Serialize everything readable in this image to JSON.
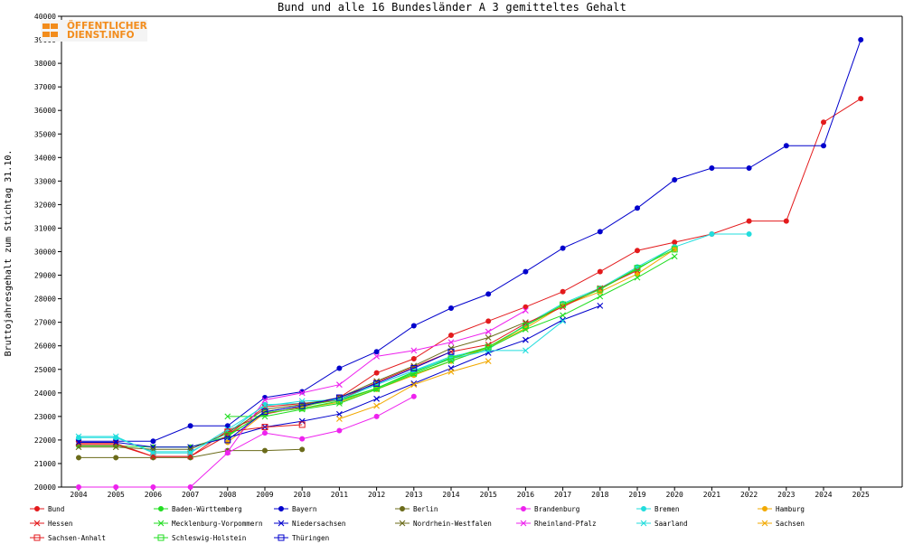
{
  "chart_data": {
    "type": "line",
    "title": "Bund und alle 16 Bundesländer A 3 gemitteltes Gehalt",
    "xlabel": "",
    "ylabel": "Bruttojahresgehalt zum Stichtag 31.10.",
    "ylim": [
      20000,
      40000
    ],
    "yticks": [
      20000,
      21000,
      22000,
      23000,
      24000,
      25000,
      26000,
      27000,
      28000,
      29000,
      30000,
      31000,
      32000,
      33000,
      34000,
      35000,
      36000,
      37000,
      38000,
      39000,
      40000
    ],
    "x": [
      "2004",
      "2005",
      "2006",
      "2007",
      "2008",
      "2009",
      "2010",
      "2011",
      "2012",
      "2013",
      "2014",
      "2015",
      "2016",
      "2017",
      "2018",
      "2019",
      "2020",
      "2021",
      "2022",
      "2023",
      "2024",
      "2025"
    ],
    "grid": false,
    "legend_position": "bottom",
    "series": [
      {
        "name": "Bund",
        "color": "#e31a1c",
        "marker": "dot",
        "values": [
          21800,
          21800,
          21300,
          21300,
          22400,
          23100,
          23400,
          23800,
          24850,
          25450,
          26450,
          27050,
          27650,
          28300,
          29150,
          30050,
          30400,
          30750,
          31300,
          31300,
          35500,
          36500
        ]
      },
      {
        "name": "Baden-Württemberg",
        "color": "#22dd22",
        "marker": "dot",
        "values": [
          21750,
          21750,
          21700,
          21700,
          22150,
          23200,
          23450,
          23700,
          24200,
          24900,
          25500,
          25950,
          26850,
          27700,
          28400,
          29250,
          30200,
          null,
          null,
          null,
          null,
          null
        ]
      },
      {
        "name": "Bayern",
        "color": "#0000cc",
        "marker": "dot",
        "values": [
          21950,
          21950,
          21950,
          22600,
          22600,
          23800,
          24050,
          25050,
          25750,
          26850,
          27600,
          28200,
          29150,
          30150,
          30850,
          31850,
          33050,
          33550,
          33550,
          34500,
          34500,
          39000
        ]
      },
      {
        "name": "Berlin",
        "color": "#6b6b1a",
        "marker": "dot",
        "values": [
          21250,
          21250,
          21250,
          21250,
          21550,
          21550,
          21600,
          null,
          null,
          null,
          null,
          null,
          null,
          null,
          null,
          null,
          null,
          null,
          null,
          null,
          null,
          null
        ]
      },
      {
        "name": "Brandenburg",
        "color": "#ee22ee",
        "marker": "dot",
        "values": [
          20000,
          20000,
          20000,
          20000,
          21450,
          22300,
          22050,
          22400,
          23000,
          23850,
          null,
          null,
          null,
          null,
          null,
          null,
          null,
          null,
          null,
          null,
          null,
          null
        ]
      },
      {
        "name": "Bremen",
        "color": "#22dddd",
        "marker": "dot",
        "values": [
          22100,
          22100,
          21500,
          21500,
          22300,
          23500,
          23550,
          23750,
          24350,
          24950,
          25550,
          25850,
          26900,
          27800,
          28450,
          29350,
          30200,
          30750,
          30750,
          null,
          null,
          null
        ]
      },
      {
        "name": "Hamburg",
        "color": "#f2a900",
        "marker": "dot",
        "values": [
          null,
          null,
          null,
          null,
          21900,
          23150,
          23350,
          23600,
          24150,
          24750,
          25350,
          25950,
          26750,
          27700,
          28300,
          29050,
          30100,
          null,
          null,
          null,
          null,
          null
        ]
      },
      {
        "name": "Hessen",
        "color": "#e31a1c",
        "marker": "x",
        "values": [
          21850,
          21850,
          21300,
          21300,
          22200,
          23400,
          23550,
          23700,
          24450,
          25100,
          25750,
          26050,
          26950,
          27650,
          28450,
          29200,
          null,
          null,
          null,
          null,
          null,
          null
        ]
      },
      {
        "name": "Mecklenburg-Vorpommern",
        "color": "#22dd22",
        "marker": "x",
        "values": [
          null,
          null,
          null,
          null,
          23000,
          23000,
          23300,
          23550,
          24150,
          24800,
          25350,
          25900,
          26700,
          27300,
          28100,
          28900,
          29800,
          null,
          null,
          null,
          null,
          null
        ]
      },
      {
        "name": "Niedersachsen",
        "color": "#0000cc",
        "marker": "x",
        "values": [
          21900,
          21900,
          21700,
          21700,
          22100,
          22550,
          22800,
          23100,
          23750,
          24400,
          25050,
          25700,
          26250,
          27100,
          27700,
          null,
          null,
          null,
          null,
          null,
          null,
          null
        ]
      },
      {
        "name": "Nordrhein-Westfalen",
        "color": "#6b6b1a",
        "marker": "x",
        "values": [
          21700,
          21700,
          21600,
          21600,
          22300,
          23300,
          23500,
          23800,
          24500,
          25150,
          25900,
          26350,
          27000,
          null,
          null,
          null,
          null,
          null,
          null,
          null,
          null,
          null
        ]
      },
      {
        "name": "Rheinland-Pfalz",
        "color": "#ee22ee",
        "marker": "x",
        "values": [
          null,
          null,
          null,
          null,
          21500,
          23700,
          24000,
          24350,
          25550,
          25800,
          26150,
          26600,
          27500,
          null,
          null,
          null,
          null,
          null,
          null,
          null,
          null,
          null
        ]
      },
      {
        "name": "Saarland",
        "color": "#22dddd",
        "marker": "x",
        "values": [
          22150,
          22150,
          21450,
          21450,
          22450,
          23450,
          23650,
          23700,
          24350,
          24950,
          25450,
          25800,
          25800,
          27050,
          null,
          null,
          null,
          null,
          null,
          null,
          null,
          null
        ]
      },
      {
        "name": "Sachsen",
        "color": "#f2a900",
        "marker": "x",
        "values": [
          null,
          null,
          null,
          null,
          null,
          null,
          null,
          22900,
          23450,
          24350,
          24900,
          25350,
          null,
          null,
          null,
          null,
          null,
          null,
          null,
          null,
          null,
          null
        ]
      },
      {
        "name": "Sachsen-Anhalt",
        "color": "#e31a1c",
        "marker": "square",
        "values": [
          null,
          null,
          null,
          null,
          22350,
          22550,
          22650,
          null,
          null,
          null,
          null,
          null,
          null,
          null,
          null,
          null,
          null,
          null,
          null,
          null,
          null,
          null
        ]
      },
      {
        "name": "Schleswig-Holstein",
        "color": "#22dd22",
        "marker": "square",
        "values": [
          null,
          null,
          null,
          null,
          22200,
          23150,
          23350,
          23650,
          24200,
          24850,
          25450,
          25950,
          26850,
          27750,
          28400,
          29300,
          30100,
          null,
          null,
          null,
          null,
          null
        ]
      },
      {
        "name": "Thüringen",
        "color": "#0000cc",
        "marker": "square",
        "values": [
          null,
          null,
          null,
          null,
          22000,
          23200,
          23450,
          23800,
          24400,
          25050,
          25750,
          null,
          null,
          null,
          null,
          null,
          null,
          null,
          null,
          null,
          null,
          null
        ]
      }
    ]
  },
  "logo": {
    "line1": "ÖFFENTLICHER",
    "line2": "DIENST.INFO",
    "brand_color": "#f28c1c"
  },
  "colors": {
    "axis": "#000000",
    "background": "#ffffff"
  }
}
